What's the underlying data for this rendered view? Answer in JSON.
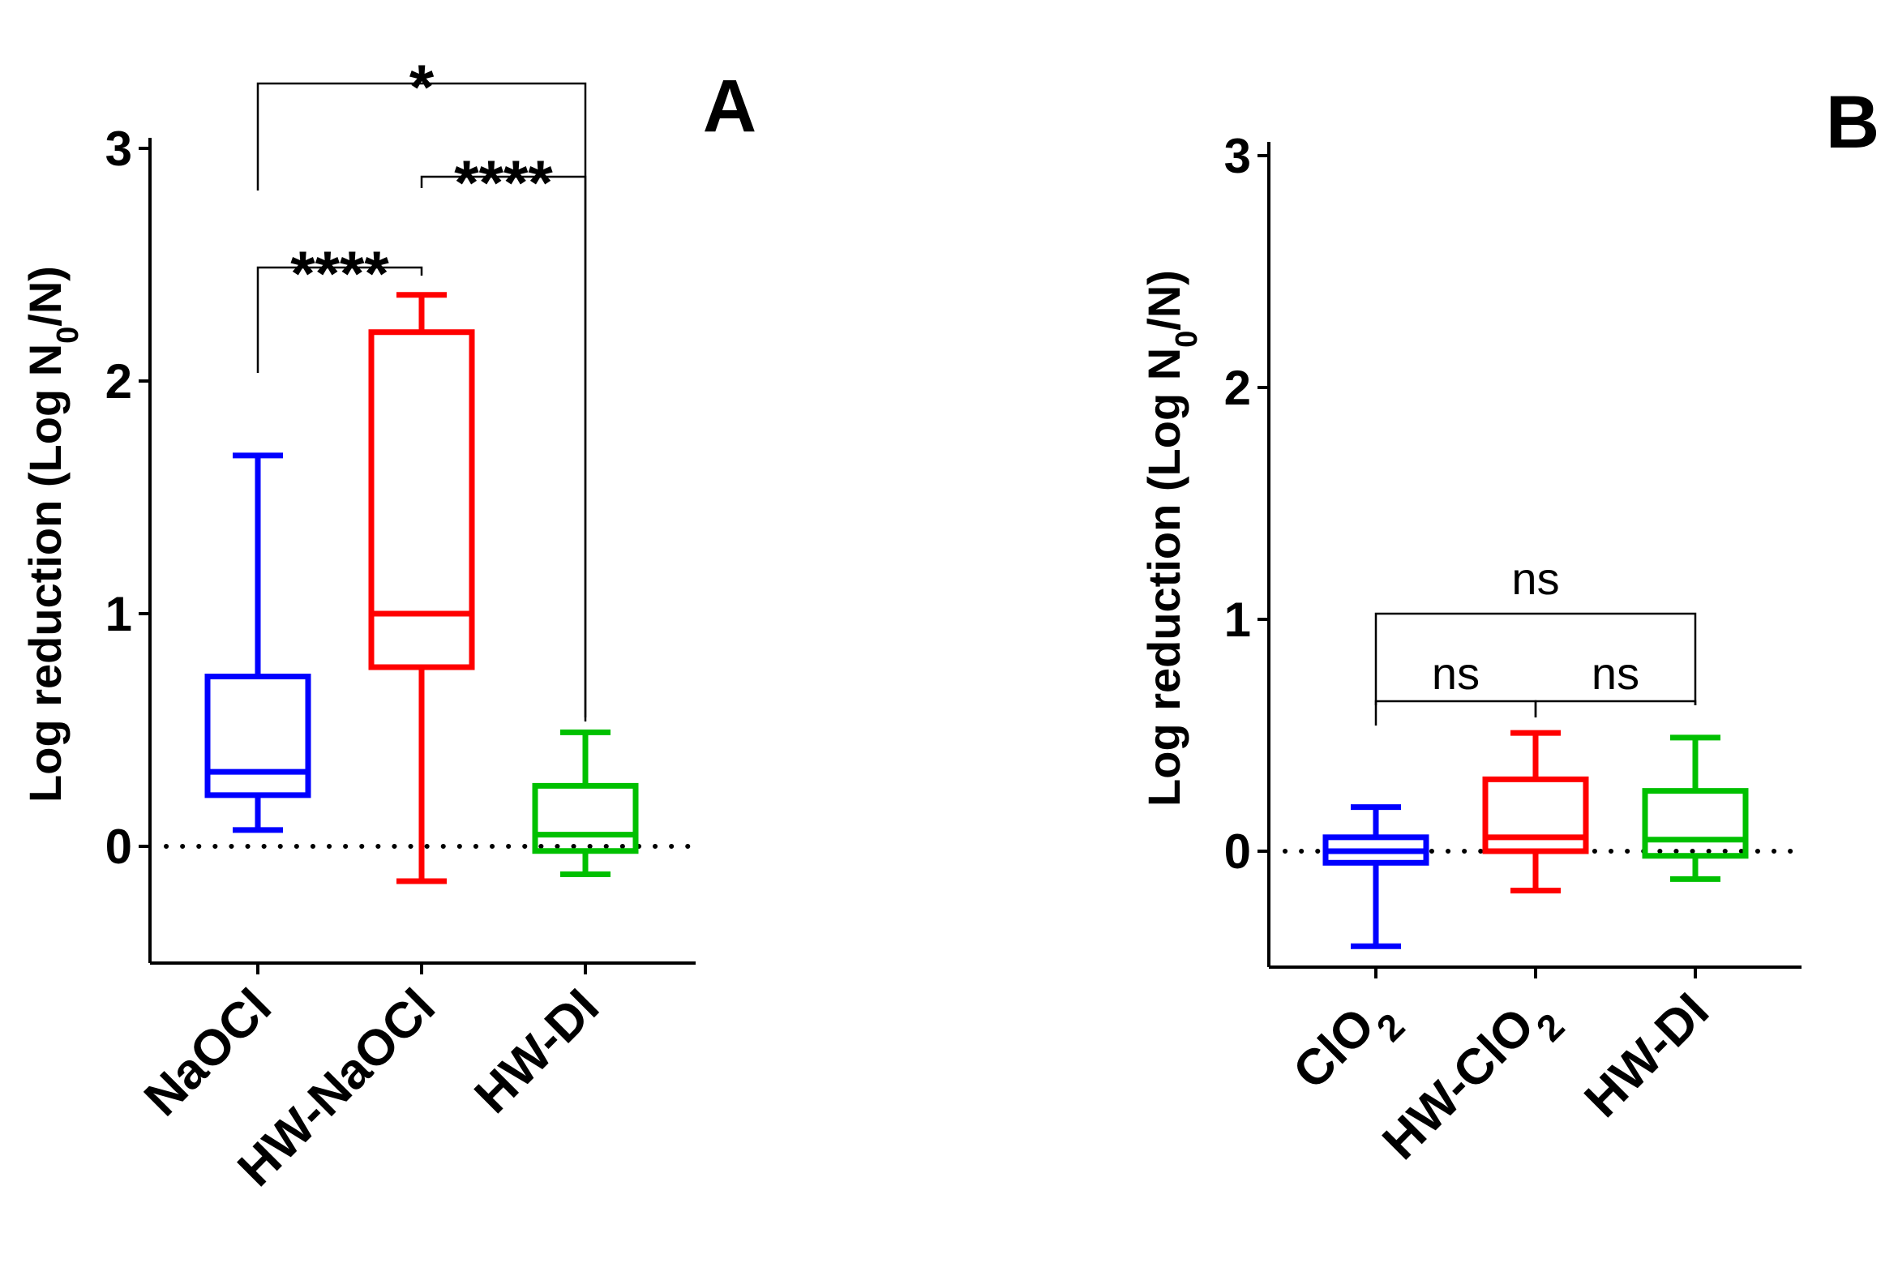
{
  "chart_data": [
    {
      "panel": "A",
      "type": "box",
      "ylabel": "Log reduction (Log N",
      "ylabel_sub": "0",
      "ylabel_tail": "/N)",
      "ylim": [
        -0.5,
        3
      ],
      "yticks": [
        0,
        1,
        2,
        3
      ],
      "ytick_labels": [
        "0",
        "1",
        "2",
        "3"
      ],
      "reference_line": 0,
      "categories": [
        "NaOCl",
        "HW-NaOCl",
        "HW-DI"
      ],
      "colors": [
        "#0000ff",
        "#ff0000",
        "#00c000"
      ],
      "boxes": [
        {
          "name": "NaOCl",
          "min": 0.07,
          "q1": 0.22,
          "median": 0.32,
          "q3": 0.73,
          "max": 1.68
        },
        {
          "name": "HW-NaOCl",
          "min": -0.15,
          "q1": 0.77,
          "median": 1.0,
          "q3": 2.21,
          "max": 2.37
        },
        {
          "name": "HW-DI",
          "min": -0.12,
          "q1": -0.02,
          "median": 0.05,
          "q3": 0.26,
          "max": 0.49
        }
      ],
      "comparisons": [
        {
          "from": 0,
          "to": 1,
          "label": "****",
          "level": 0
        },
        {
          "from": 1,
          "to": 2,
          "label": "****",
          "level": 1
        },
        {
          "from": 0,
          "to": 2,
          "label": "*",
          "level": 2
        }
      ]
    },
    {
      "panel": "B",
      "type": "box",
      "ylabel": "Log reduction (Log N",
      "ylabel_sub": "0",
      "ylabel_tail": "/N)",
      "ylim": [
        -0.5,
        3
      ],
      "yticks": [
        0,
        1,
        2,
        3
      ],
      "ytick_labels": [
        "0",
        "1",
        "2",
        "3"
      ],
      "reference_line": 0,
      "categories": [
        "ClO",
        "HW-ClO",
        "HW-DI"
      ],
      "category_subscripts": [
        "2",
        "2",
        ""
      ],
      "colors": [
        "#0000ff",
        "#ff0000",
        "#00c000"
      ],
      "boxes": [
        {
          "name": "ClO2",
          "min": -0.41,
          "q1": -0.05,
          "median": 0.0,
          "q3": 0.06,
          "max": 0.19
        },
        {
          "name": "HW-ClO2",
          "min": -0.17,
          "q1": 0.0,
          "median": 0.06,
          "q3": 0.31,
          "max": 0.51
        },
        {
          "name": "HW-DI",
          "min": -0.12,
          "q1": -0.02,
          "median": 0.05,
          "q3": 0.26,
          "max": 0.49
        }
      ],
      "comparisons": [
        {
          "from": 0,
          "to": 1,
          "label": "ns",
          "level": 0
        },
        {
          "from": 1,
          "to": 2,
          "label": "ns",
          "level": 0
        },
        {
          "from": 0,
          "to": 2,
          "label": "ns",
          "level": 1
        }
      ]
    }
  ]
}
